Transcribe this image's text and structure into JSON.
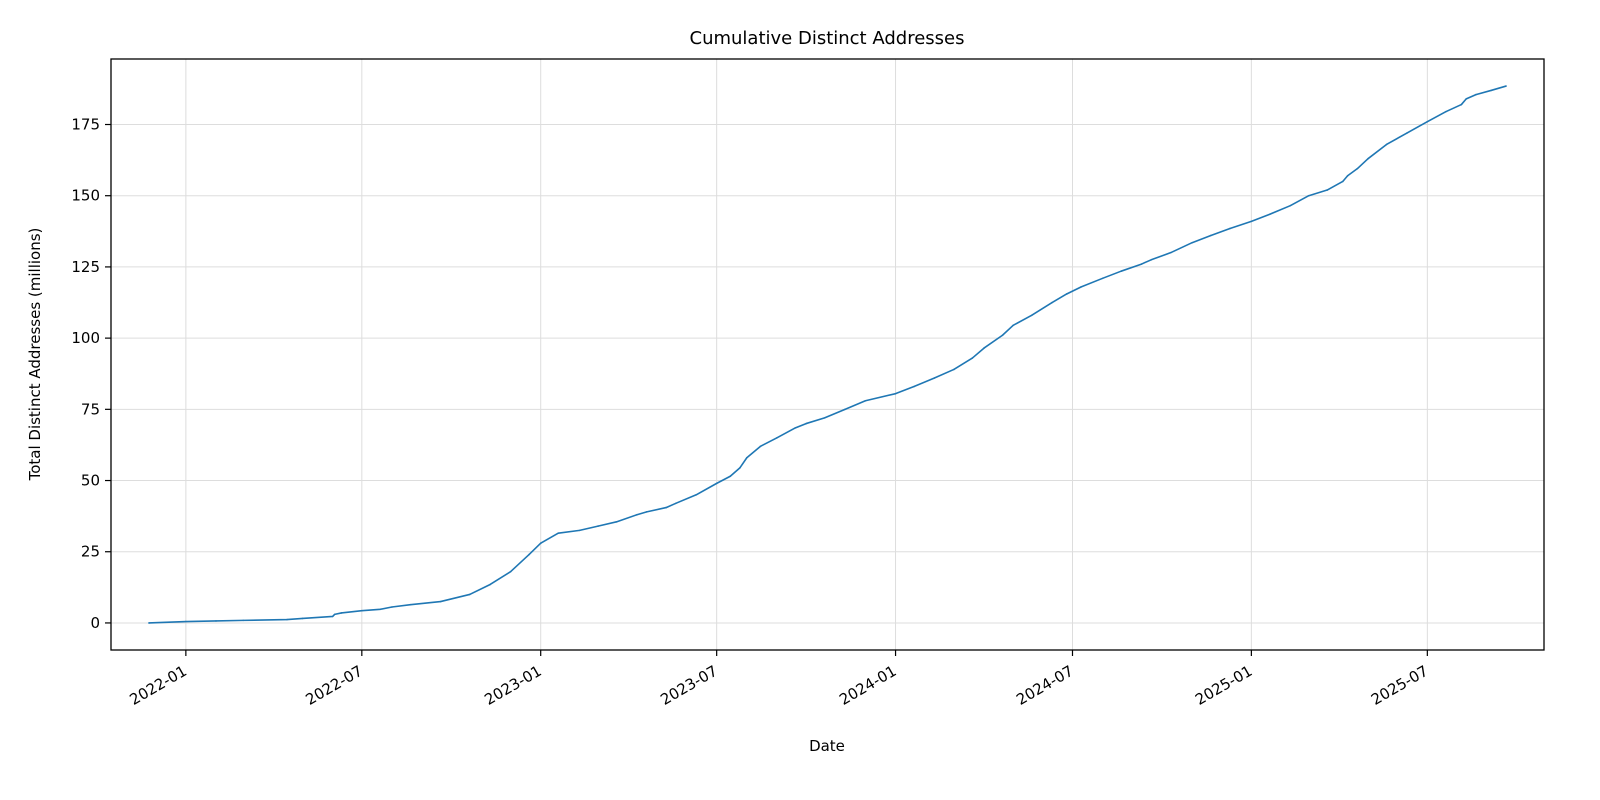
{
  "chart_data": {
    "type": "line",
    "title": "Cumulative Distinct Addresses",
    "xlabel": "Date",
    "ylabel": "Total Distinct Addresses (millions)",
    "x_ticks": [
      "2022-01",
      "2022-07",
      "2023-01",
      "2023-07",
      "2024-01",
      "2024-07",
      "2025-01",
      "2025-07"
    ],
    "y_ticks": [
      0,
      25,
      50,
      75,
      100,
      125,
      150,
      175
    ],
    "xlim": [
      "2021-10-16",
      "2025-10-29"
    ],
    "ylim": [
      -9.5,
      198
    ],
    "grid": true,
    "line_color": "#1f77b4",
    "series": [
      {
        "x": [
          "2021-11-24",
          "2022-01-01",
          "2022-02-01",
          "2022-03-01",
          "2022-04-15",
          "2022-05-01",
          "2022-06-01",
          "2022-06-03",
          "2022-06-10",
          "2022-07-01",
          "2022-07-20",
          "2022-08-01",
          "2022-08-20",
          "2022-09-20",
          "2022-10-20",
          "2022-11-10",
          "2022-12-01",
          "2022-12-20",
          "2023-01-01",
          "2023-01-19",
          "2023-02-10",
          "2023-03-01",
          "2023-03-20",
          "2023-04-10",
          "2023-04-20",
          "2023-05-10",
          "2023-05-20",
          "2023-06-10",
          "2023-07-01",
          "2023-07-15",
          "2023-07-25",
          "2023-08-01",
          "2023-08-15",
          "2023-09-01",
          "2023-09-20",
          "2023-10-01",
          "2023-10-20",
          "2023-11-10",
          "2023-12-01",
          "2024-01-01",
          "2024-01-20",
          "2024-02-10",
          "2024-03-01",
          "2024-03-20",
          "2024-04-01",
          "2024-04-20",
          "2024-05-01",
          "2024-05-20",
          "2024-06-10",
          "2024-06-25",
          "2024-07-10",
          "2024-08-01",
          "2024-08-20",
          "2024-09-10",
          "2024-09-20",
          "2024-10-10",
          "2024-11-01",
          "2024-11-20",
          "2024-12-10",
          "2025-01-01",
          "2025-01-20",
          "2025-02-10",
          "2025-03-01",
          "2025-03-20",
          "2025-04-05",
          "2025-04-10",
          "2025-04-20",
          "2025-05-01",
          "2025-05-20",
          "2025-06-10",
          "2025-07-01",
          "2025-07-20",
          "2025-08-05",
          "2025-08-10",
          "2025-08-20",
          "2025-09-05",
          "2025-09-20"
        ],
        "y": [
          0,
          0.5,
          0.7,
          0.9,
          1.2,
          1.6,
          2.3,
          3.0,
          3.5,
          4.3,
          4.8,
          5.6,
          6.4,
          7.5,
          10.0,
          13.5,
          18.0,
          24.0,
          28.0,
          31.5,
          32.5,
          34.0,
          35.5,
          38.0,
          39.0,
          40.5,
          42.0,
          45.0,
          49.0,
          51.5,
          54.5,
          58.0,
          62.0,
          65.0,
          68.5,
          70.0,
          72.0,
          75.0,
          78.0,
          80.5,
          83.0,
          86.0,
          89.0,
          93.0,
          96.5,
          101.0,
          104.5,
          108.0,
          112.5,
          115.5,
          118.0,
          121.0,
          123.5,
          126.0,
          127.5,
          130.0,
          133.5,
          136.0,
          138.5,
          141.0,
          143.5,
          146.5,
          150.0,
          152.0,
          155.0,
          157.0,
          159.5,
          163.0,
          168.0,
          172.0,
          176.0,
          179.5,
          182.0,
          184.0,
          185.5,
          187.0,
          188.5
        ]
      }
    ]
  }
}
